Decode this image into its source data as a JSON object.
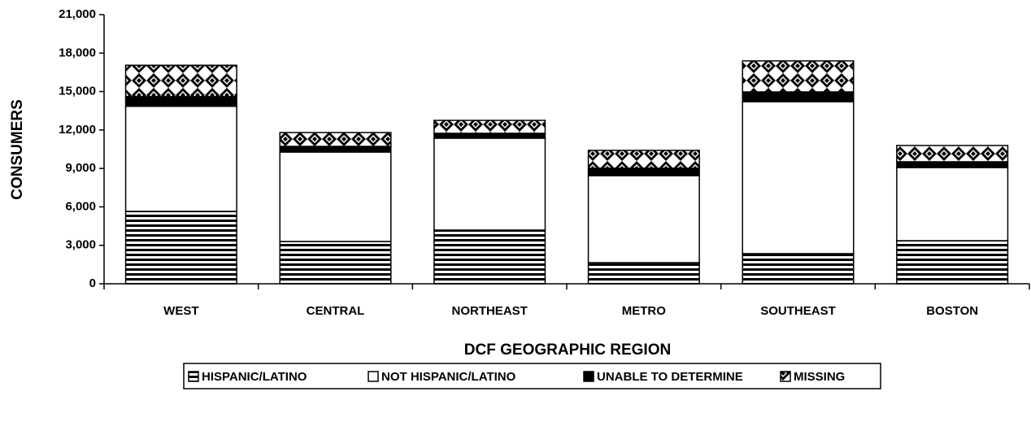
{
  "chart_data": {
    "type": "stacked_bar",
    "x_label": "DCF GEOGRAPHIC REGION",
    "y_label": "CONSUMERS",
    "categories": [
      "WEST",
      "CENTRAL",
      "NORTHEAST",
      "METRO",
      "SOUTHEAST",
      "BOSTON"
    ],
    "series": [
      {
        "name": "HISPANIC/LATINO",
        "color": "#000000",
        "pattern": "horizontal-stripes",
        "values": [
          5650,
          3300,
          4190,
          1650,
          2350,
          3360
        ]
      },
      {
        "name": "NOT HISPANIC/LATINO",
        "color": "#ffffff",
        "pattern": "solid",
        "values": [
          8200,
          6980,
          7170,
          6790,
          11860,
          5710
        ]
      },
      {
        "name": "UNABLE TO DETERMINE",
        "color": "#000000",
        "pattern": "solid",
        "values": [
          750,
          440,
          380,
          570,
          760,
          450
        ]
      },
      {
        "name": "MISSING",
        "color": "#000000",
        "pattern": "checker",
        "values": [
          2450,
          1080,
          1010,
          1400,
          2420,
          1270
        ]
      }
    ],
    "ylim": [
      0,
      21000
    ],
    "yticks": [
      0,
      {
        "value": 3000,
        "label": "3,000"
      },
      {
        "value": 6000,
        "label": "6,000"
      },
      {
        "value": 9000,
        "label": "9,000"
      },
      {
        "value": 12000,
        "label": "12,000"
      },
      {
        "value": 15000,
        "label": "15,000"
      },
      {
        "value": 18000,
        "label": "18,000"
      },
      {
        "value": 21000,
        "label": "21,000"
      }
    ],
    "legend": "bottom"
  }
}
